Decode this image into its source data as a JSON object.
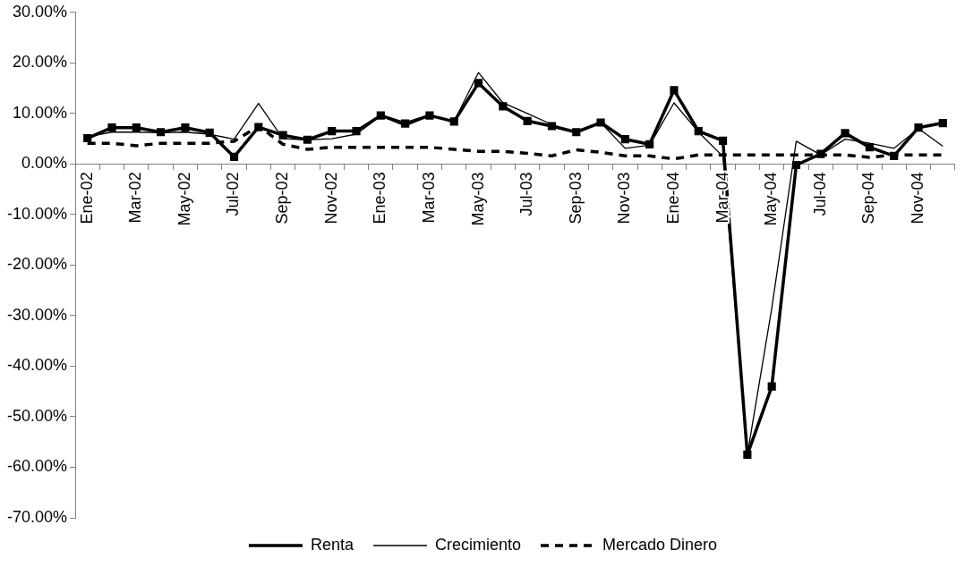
{
  "chart_data": {
    "type": "line",
    "categories": [
      "Ene-02",
      null,
      "Mar-02",
      null,
      "May-02",
      null,
      "Jul-02",
      null,
      "Sep-02",
      null,
      "Nov-02",
      null,
      "Ene-03",
      null,
      "Mar-03",
      null,
      "May-03",
      null,
      "Jul-03",
      null,
      "Sep-03",
      null,
      "Nov-03",
      null,
      "Ene-04",
      null,
      "Mar-04",
      null,
      "May-04",
      null,
      "Jul-04",
      null,
      "Sep-04",
      null,
      "Nov-04",
      null
    ],
    "series": [
      {
        "name": "Renta",
        "color": "#000000",
        "marker": "square",
        "line_style": "solid",
        "values": [
          5.1,
          7.2,
          7.2,
          6.3,
          7.2,
          6.2,
          1.4,
          7.3,
          5.7,
          4.8,
          6.5,
          6.5,
          9.6,
          8.0,
          9.6,
          8.4,
          16.0,
          11.4,
          8.5,
          7.5,
          6.3,
          8.2,
          4.9,
          3.9,
          14.6,
          6.5,
          4.6,
          -57.5,
          -44.0,
          -0.2,
          2.0,
          6.1,
          3.3,
          1.6,
          7.2,
          8.1
        ]
      },
      {
        "name": "Crecimiento",
        "color": "#000000",
        "marker": "none",
        "line_style": "solid",
        "values": [
          5.4,
          6.3,
          6.3,
          6.2,
          6.3,
          5.9,
          4.9,
          12.0,
          5.0,
          4.8,
          5.0,
          5.9,
          9.5,
          7.5,
          9.5,
          8.4,
          18.1,
          12.1,
          10.0,
          7.8,
          6.3,
          8.2,
          3.1,
          3.7,
          12.1,
          6.3,
          1.5,
          -57.5,
          -28.5,
          4.5,
          1.8,
          4.9,
          4.1,
          3.1,
          7.0,
          3.5
        ]
      },
      {
        "name": "Mercado Dinero",
        "color": "#000000",
        "marker": "none",
        "line_style": "dashed",
        "values": [
          4.1,
          4.1,
          3.6,
          4.1,
          4.1,
          4.1,
          4.5,
          7.5,
          3.9,
          2.9,
          3.3,
          3.3,
          3.3,
          3.3,
          3.3,
          2.9,
          2.5,
          2.5,
          2.1,
          1.6,
          2.8,
          2.3,
          1.6,
          1.6,
          1.0,
          1.8,
          1.8,
          1.8,
          1.8,
          1.8,
          1.8,
          1.8,
          1.3,
          1.8,
          1.8,
          1.8
        ]
      }
    ],
    "ylim": [
      -70,
      30
    ],
    "yticks": [
      {
        "value": -70,
        "label": "-70.00%"
      },
      {
        "value": -60,
        "label": "-60.00%"
      },
      {
        "value": -50,
        "label": "-50.00%"
      },
      {
        "value": -40,
        "label": "-40.00%"
      },
      {
        "value": -30,
        "label": "-30.00%"
      },
      {
        "value": -20,
        "label": "-20.00%"
      },
      {
        "value": -10,
        "label": "-10.00%"
      },
      {
        "value": 0,
        "label": "0.00%"
      },
      {
        "value": 10,
        "label": "10.00%"
      },
      {
        "value": 20,
        "label": "20.00%"
      },
      {
        "value": 30,
        "label": "30.00%"
      }
    ],
    "grid": false,
    "legend": "bottom"
  }
}
